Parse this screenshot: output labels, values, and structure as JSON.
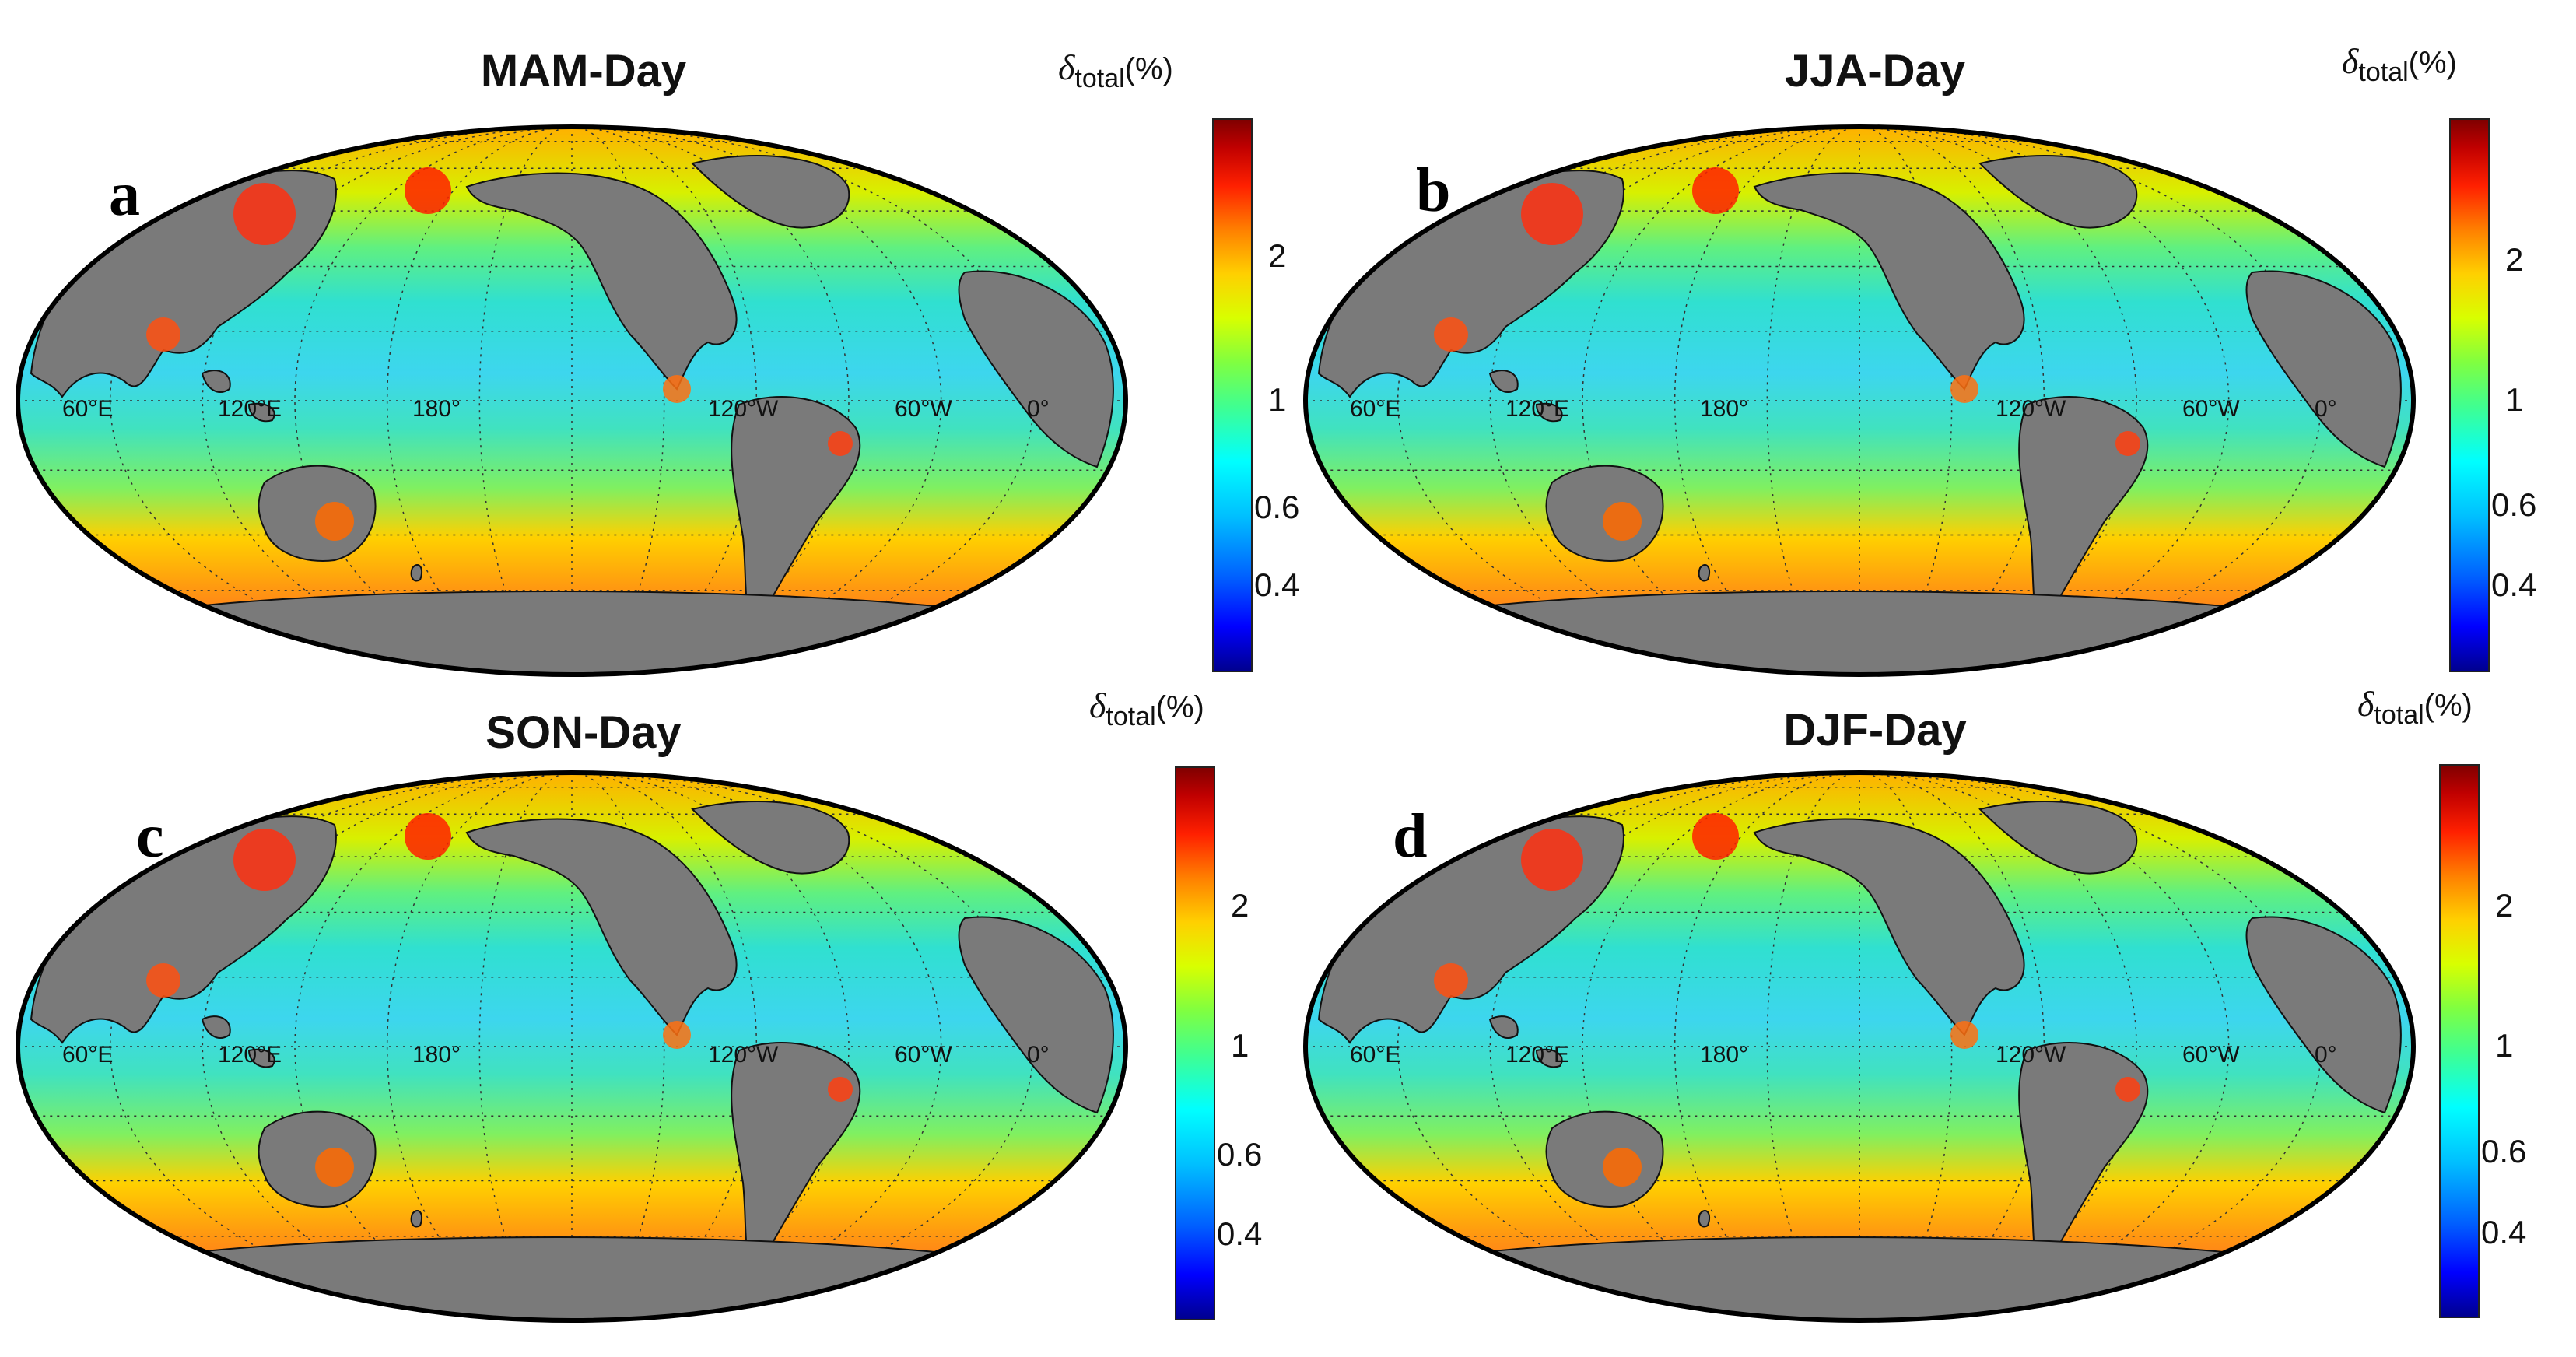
{
  "panels": [
    {
      "letter": "a",
      "title": "MAM-Day"
    },
    {
      "letter": "b",
      "title": "JJA-Day"
    },
    {
      "letter": "c",
      "title": "SON-Day"
    },
    {
      "letter": "d",
      "title": "DJF-Day"
    }
  ],
  "lon_labels": [
    "60°E",
    "120°E",
    "180°",
    "120°W",
    "60°W",
    "0°"
  ],
  "colorbar": {
    "symbol": "δ",
    "subscript": "total",
    "unit": "(%)",
    "ticks": [
      "2",
      "1",
      "0.6",
      "0.4"
    ],
    "colors": [
      "#00008f",
      "#0000ff",
      "#00bfff",
      "#00ffff",
      "#80ff40",
      "#ffd000",
      "#ff8000",
      "#ff2000",
      "#800000"
    ]
  },
  "land_color": "#7a7a7a",
  "ocean_base_color": "#3ad6e0"
}
